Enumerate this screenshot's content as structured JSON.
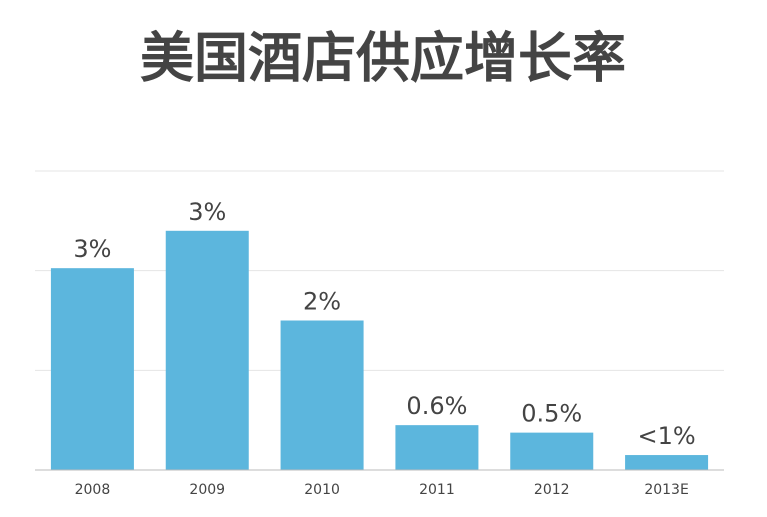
{
  "chart_data": {
    "type": "bar",
    "title": "美国酒店供应增长率",
    "categories": [
      "2008",
      "2009",
      "2010",
      "2011",
      "2012",
      "2013E"
    ],
    "values": [
      2.7,
      3.2,
      2.0,
      0.6,
      0.5,
      0.2
    ],
    "value_labels": [
      "3%",
      "3%",
      "2%",
      "0.6%",
      "0.5%",
      "<1%"
    ],
    "color": "#5cb6dd",
    "ylim": [
      0,
      4
    ],
    "yticks": [
      0,
      1.333,
      2.667,
      4
    ],
    "grid": true
  }
}
